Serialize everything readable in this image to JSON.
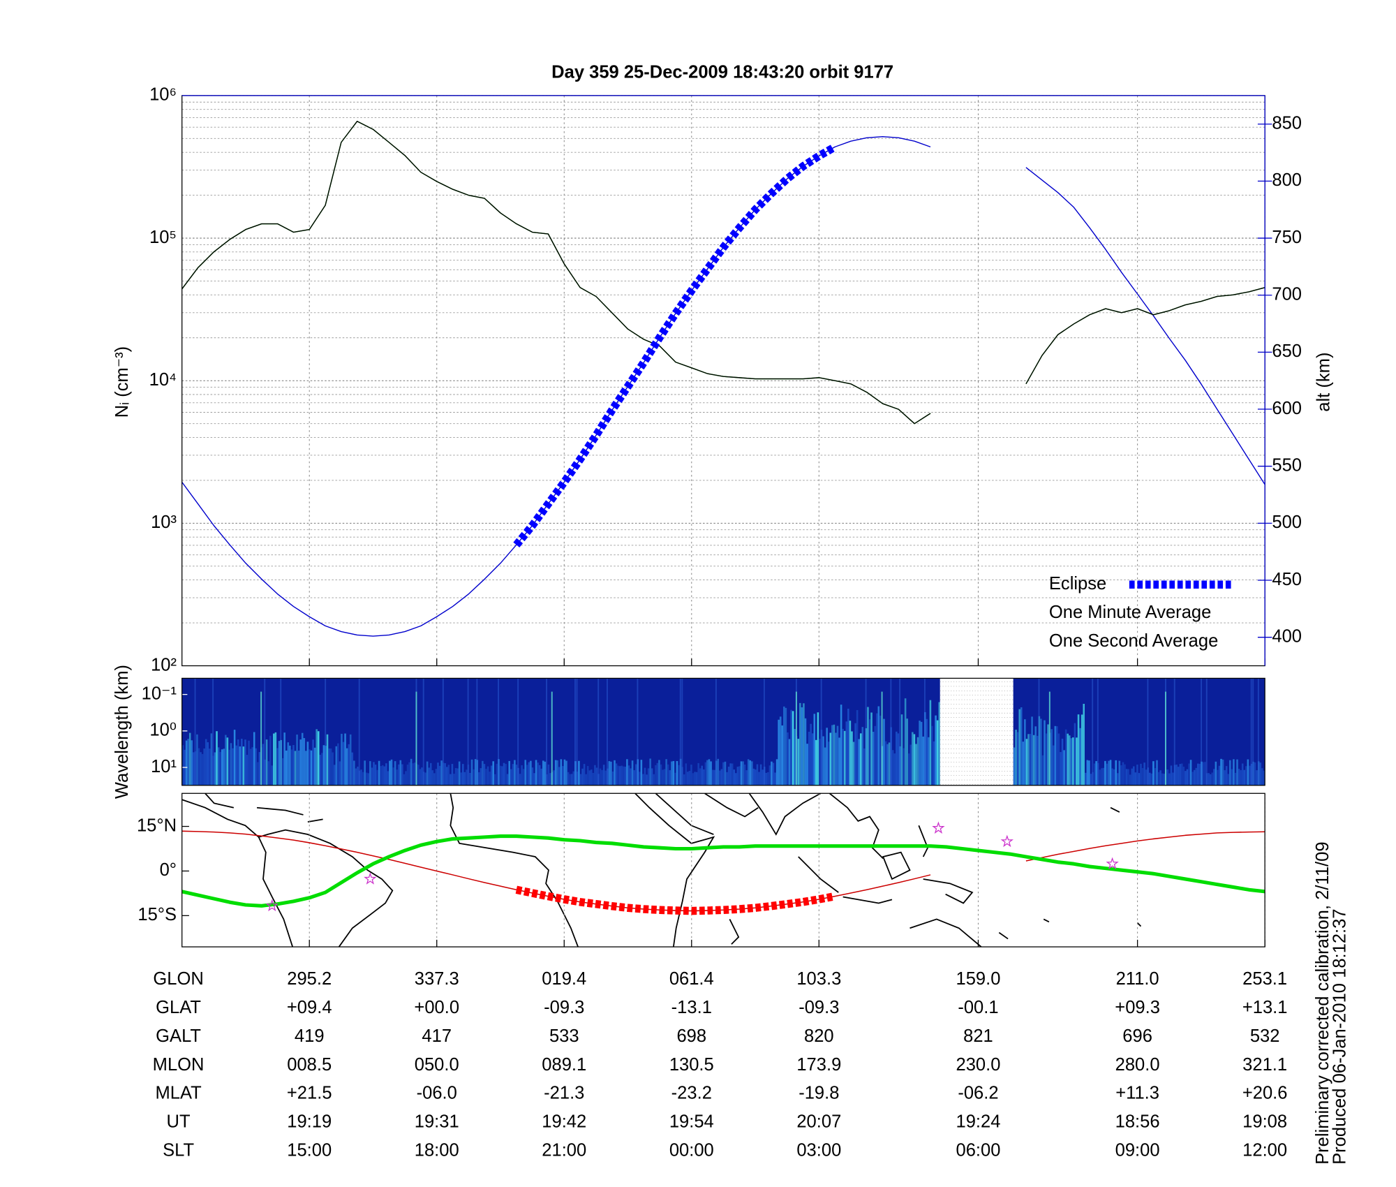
{
  "chart_data": [
    {
      "type": "line",
      "title": "Day 359  25-Dec-2009 18:43:20   orbit 9177",
      "ylabel": "Nᵢ (cm⁻³)",
      "y2label": "alt (km)",
      "xlabel": "SLT",
      "log_scale": true,
      "grid": true,
      "legend": "lower right",
      "categories": [
        null,
        null,
        null,
        null,
        null,
        null,
        null,
        null,
        "15:00",
        null,
        null,
        null,
        null,
        null,
        null,
        null,
        "18:00",
        null,
        null,
        null,
        null,
        null,
        null,
        null,
        "21:00",
        null,
        null,
        null,
        null,
        null,
        null,
        null,
        "00:00",
        null,
        null,
        null,
        null,
        null,
        null,
        null,
        "03:00",
        null,
        null,
        null,
        null,
        null,
        null,
        null,
        null,
        null,
        "06:00",
        null,
        null,
        null,
        null,
        null,
        null,
        null,
        null,
        null,
        "09:00",
        null,
        null,
        null,
        null,
        null,
        null,
        null,
        "12:00"
      ],
      "ylim": [
        100,
        1000000
      ],
      "yticks": [
        {
          "value": 100,
          "label": "10²"
        },
        {
          "value": 1000,
          "label": "10³"
        },
        {
          "value": 10000,
          "label": "10⁴"
        },
        {
          "value": 100000,
          "label": "10⁵"
        },
        {
          "value": 1000000,
          "label": "10⁶"
        }
      ],
      "y2lim": [
        375,
        875
      ],
      "y2ticks": [
        400,
        450,
        500,
        550,
        600,
        650,
        700,
        750,
        800,
        850
      ],
      "series": [
        {
          "color": "#0000cc",
          "axis": "y2",
          "linestyle": "solid",
          "values": [
            536,
            517,
            498,
            481,
            465,
            451,
            438,
            427,
            418,
            410,
            405,
            402,
            401,
            402,
            405,
            410,
            418,
            427,
            438,
            451,
            465,
            481,
            498,
            517,
            536,
            556,
            577,
            599,
            620,
            641,
            663,
            684,
            704,
            723,
            742,
            759,
            775,
            789,
            802,
            813,
            822,
            830,
            835,
            838,
            839,
            838,
            835,
            830,
            null,
            null,
            null,
            null,
            null,
            812,
            801,
            790,
            777,
            759,
            740,
            720,
            701,
            682,
            662,
            643,
            622,
            600,
            578,
            556,
            534
          ]
        },
        {
          "name": "Eclipse",
          "color": "#0000ff",
          "axis": "y2",
          "linestyle": "dashed",
          "values": [
            null,
            null,
            null,
            null,
            null,
            null,
            null,
            null,
            null,
            null,
            null,
            null,
            null,
            null,
            null,
            null,
            null,
            null,
            null,
            null,
            null,
            481,
            498,
            517,
            536,
            556,
            577,
            599,
            620,
            641,
            663,
            684,
            704,
            723,
            742,
            759,
            775,
            789,
            802,
            813,
            822,
            830,
            null,
            null,
            null,
            null,
            null,
            null,
            null,
            null,
            null,
            null,
            null,
            null,
            null,
            null,
            null,
            null,
            null,
            null,
            null,
            null,
            null,
            null,
            null,
            null,
            null,
            null,
            null
          ]
        },
        {
          "name": "One Minute Average",
          "color": "#000000",
          "linestyle": "solid",
          "values": [
            44000,
            62000,
            80000,
            98000,
            115000,
            126000,
            126000,
            110000,
            115000,
            170000,
            470000,
            660000,
            580000,
            470000,
            380000,
            290000,
            250000,
            220000,
            200000,
            190000,
            150000,
            126000,
            110000,
            107000,
            66000,
            45000,
            39000,
            30000,
            23000,
            19500,
            17500,
            13500,
            12300,
            11200,
            10700,
            10500,
            10300,
            10300,
            10300,
            10300,
            10500,
            10000,
            9500,
            8300,
            6900,
            6300,
            5000,
            5900,
            null,
            null,
            null,
            null,
            null,
            9500,
            15000,
            21000,
            25000,
            29000,
            32000,
            30000,
            32000,
            29000,
            31000,
            34000,
            36000,
            39000,
            40000,
            42000,
            45000
          ]
        },
        {
          "name": "One Second Average",
          "color": "#00ee00",
          "linestyle": "solid",
          "values": [
            44000,
            62000,
            80000,
            98000,
            115000,
            126000,
            126000,
            110000,
            115000,
            170000,
            470000,
            660000,
            580000,
            470000,
            380000,
            290000,
            250000,
            220000,
            200000,
            190000,
            150000,
            126000,
            110000,
            107000,
            66000,
            45000,
            39000,
            30000,
            23000,
            19500,
            17500,
            13500,
            12300,
            11200,
            10700,
            10500,
            10300,
            10300,
            10300,
            10300,
            10500,
            10000,
            9500,
            8300,
            6900,
            6300,
            5000,
            5900,
            null,
            null,
            null,
            null,
            null,
            9500,
            15000,
            21000,
            25000,
            29000,
            32000,
            30000,
            32000,
            29000,
            31000,
            34000,
            36000,
            39000,
            40000,
            42000,
            45000
          ]
        }
      ],
      "table_rows": [
        {
          "label": "GLON",
          "values": [
            "295.2",
            "337.3",
            "019.4",
            "061.4",
            "103.3",
            "159.0",
            "211.0",
            "253.1"
          ]
        },
        {
          "label": "GLAT",
          "values": [
            "+09.4",
            "+00.0",
            "-09.3",
            "-13.1",
            "-09.3",
            "-00.1",
            "+09.3",
            "+13.1"
          ]
        },
        {
          "label": "GALT",
          "values": [
            "419",
            "417",
            "533",
            "698",
            "820",
            "821",
            "696",
            "532"
          ]
        },
        {
          "label": "MLON",
          "values": [
            "008.5",
            "050.0",
            "089.1",
            "130.5",
            "173.9",
            "230.0",
            "280.0",
            "321.1"
          ]
        },
        {
          "label": "MLAT",
          "values": [
            "+21.5",
            "-06.0",
            "-21.3",
            "-23.2",
            "-19.8",
            "-06.2",
            "+11.3",
            "+20.6"
          ]
        },
        {
          "label": "UT",
          "values": [
            "19:19",
            "19:31",
            "19:42",
            "19:54",
            "20:07",
            "19:24",
            "18:56",
            "19:08"
          ]
        }
      ]
    },
    {
      "type": "spectrogram",
      "ylabel": "Wavelength (km)",
      "log_scale": true,
      "y_inverted": true,
      "ylim": [
        0.036,
        31
      ],
      "yticks": [
        {
          "value": 0.1,
          "label": "10⁻¹"
        },
        {
          "value": 1,
          "label": "10⁰"
        },
        {
          "value": 10,
          "label": "10¹"
        }
      ]
    },
    {
      "type": "map",
      "ylim": [
        -25.5,
        26.1
      ],
      "yticks": [
        {
          "value": 15,
          "label": "15°N"
        },
        {
          "value": 0,
          "label": "0°"
        },
        {
          "value": -15,
          "label": "15°S"
        }
      ],
      "series": [
        {
          "color": "#cc0000",
          "linestyle": "solid",
          "linewidth": "thin",
          "values": [
            13.4,
            13.3,
            13.1,
            12.8,
            12.4,
            11.8,
            11.1,
            10.4,
            9.5,
            8.5,
            7.4,
            6.3,
            5.1,
            3.9,
            2.6,
            1.3,
            0,
            -1.3,
            -2.6,
            -3.9,
            -5.1,
            -6.3,
            -7.4,
            -8.5,
            -9.5,
            -10.4,
            -11.1,
            -11.8,
            -12.4,
            -12.8,
            -13.1,
            -13.3,
            -13.4,
            -13.3,
            -13.1,
            -12.8,
            -12.4,
            -11.8,
            -11.1,
            -10.4,
            -9.5,
            -8.5,
            -7.4,
            -6.3,
            -5.1,
            -3.9,
            -2.6,
            -1.3,
            null,
            null,
            null,
            null,
            null,
            3.4,
            4.5,
            5.6,
            6.6,
            7.6,
            8.5,
            9.3,
            10.1,
            10.8,
            11.4,
            12.0,
            12.4,
            12.8,
            13.0,
            13.1,
            13.2
          ]
        },
        {
          "color": "#00dd00",
          "linestyle": "solid",
          "linewidth": "thick",
          "values": [
            -6.9,
            -8.1,
            -9.3,
            -10.5,
            -11.4,
            -11.7,
            -11.1,
            -10.2,
            -9.0,
            -7.2,
            -3.9,
            -0.6,
            2.4,
            4.8,
            6.9,
            8.7,
            9.9,
            10.8,
            11.1,
            11.4,
            11.7,
            11.7,
            11.4,
            11.1,
            10.5,
            10.2,
            9.6,
            9.3,
            8.7,
            8.1,
            7.8,
            7.5,
            7.5,
            7.8,
            8.1,
            8.1,
            8.4,
            8.4,
            8.4,
            8.4,
            8.4,
            8.4,
            8.4,
            8.4,
            8.4,
            8.4,
            8.4,
            8.4,
            8.1,
            7.5,
            6.9,
            6.3,
            5.7,
            4.8,
            3.9,
            3.0,
            2.4,
            1.5,
            0.9,
            0.3,
            -0.3,
            -0.9,
            -1.8,
            -2.7,
            -3.6,
            -4.5,
            -5.4,
            -6.3,
            -6.9
          ]
        },
        {
          "color": "#ff0000",
          "linestyle": "dashed",
          "linewidth": "thick",
          "values": [
            null,
            null,
            null,
            null,
            null,
            null,
            null,
            null,
            null,
            null,
            null,
            null,
            null,
            null,
            null,
            null,
            null,
            null,
            null,
            null,
            null,
            -6.3,
            -7.4,
            -8.5,
            -9.5,
            -10.4,
            -11.1,
            -11.8,
            -12.4,
            -12.8,
            -13.1,
            -13.3,
            -13.4,
            -13.3,
            -13.1,
            -12.8,
            -12.4,
            -11.8,
            -11.1,
            -10.4,
            -9.5,
            -8.5,
            null,
            null,
            null,
            null,
            null,
            null,
            null,
            null,
            null,
            null,
            null,
            null,
            null,
            null,
            null,
            null,
            null,
            null,
            null,
            null,
            null,
            null,
            null,
            null,
            null,
            null,
            null
          ]
        }
      ]
    }
  ],
  "notes": [
    "Preliminary corrected calibration, 2/11/09",
    "Produced 06-Jan-2010 18:12:37"
  ]
}
